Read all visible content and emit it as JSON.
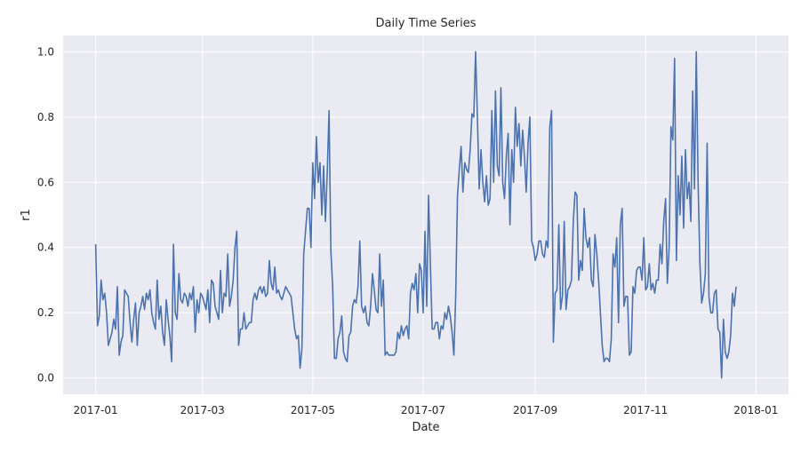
{
  "chart_data": {
    "type": "line",
    "title": "Daily Time Series",
    "xlabel": "Date",
    "ylabel": "r1",
    "x_tick_labels": [
      "2017-01",
      "2017-03",
      "2017-05",
      "2017-07",
      "2017-09",
      "2017-11",
      "2018-01"
    ],
    "x_tick_dates": [
      "2017-01-01",
      "2017-03-01",
      "2017-05-01",
      "2017-07-01",
      "2017-09-01",
      "2017-11-01",
      "2018-01-01"
    ],
    "xlim": [
      "2016-12-14",
      "2018-01-19"
    ],
    "y_ticks": [
      0.0,
      0.2,
      0.4,
      0.6,
      0.8,
      1.0
    ],
    "y_tick_labels": [
      "0.0",
      "0.2",
      "0.4",
      "0.6",
      "0.8",
      "1.0"
    ],
    "ylim": [
      -0.05,
      1.05
    ],
    "grid": true,
    "colors": {
      "background": "#EAEAF2",
      "grid": "#FFFFFF",
      "line": "#4C72B0",
      "text": "#262626"
    },
    "series": [
      {
        "start_date": "2017-01-01",
        "step_days": 1,
        "values": [
          0.41,
          0.16,
          0.19,
          0.3,
          0.24,
          0.26,
          0.2,
          0.1,
          0.12,
          0.14,
          0.18,
          0.15,
          0.28,
          0.07,
          0.11,
          0.13,
          0.27,
          0.26,
          0.25,
          0.17,
          0.11,
          0.18,
          0.23,
          0.1,
          0.2,
          0.22,
          0.25,
          0.21,
          0.26,
          0.24,
          0.27,
          0.2,
          0.17,
          0.15,
          0.3,
          0.18,
          0.22,
          0.14,
          0.1,
          0.24,
          0.18,
          0.13,
          0.05,
          0.41,
          0.2,
          0.18,
          0.32,
          0.24,
          0.23,
          0.26,
          0.25,
          0.22,
          0.26,
          0.24,
          0.28,
          0.14,
          0.24,
          0.2,
          0.26,
          0.25,
          0.23,
          0.21,
          0.27,
          0.17,
          0.3,
          0.29,
          0.22,
          0.2,
          0.18,
          0.33,
          0.2,
          0.26,
          0.25,
          0.38,
          0.22,
          0.25,
          0.3,
          0.4,
          0.45,
          0.1,
          0.15,
          0.15,
          0.2,
          0.15,
          0.16,
          0.17,
          0.17,
          0.24,
          0.26,
          0.24,
          0.27,
          0.28,
          0.26,
          0.28,
          0.25,
          0.26,
          0.36,
          0.29,
          0.27,
          0.34,
          0.26,
          0.27,
          0.25,
          0.24,
          0.26,
          0.28,
          0.27,
          0.26,
          0.25,
          0.2,
          0.15,
          0.12,
          0.13,
          0.03,
          0.09,
          0.38,
          0.45,
          0.52,
          0.52,
          0.4,
          0.66,
          0.55,
          0.74,
          0.6,
          0.66,
          0.5,
          0.65,
          0.48,
          0.63,
          0.82,
          0.39,
          0.28,
          0.06,
          0.06,
          0.12,
          0.14,
          0.19,
          0.08,
          0.06,
          0.05,
          0.13,
          0.14,
          0.22,
          0.24,
          0.23,
          0.28,
          0.42,
          0.22,
          0.2,
          0.22,
          0.17,
          0.16,
          0.22,
          0.32,
          0.27,
          0.21,
          0.2,
          0.38,
          0.22,
          0.3,
          0.07,
          0.08,
          0.07,
          0.07,
          0.07,
          0.07,
          0.08,
          0.14,
          0.12,
          0.16,
          0.13,
          0.15,
          0.16,
          0.12,
          0.26,
          0.29,
          0.27,
          0.32,
          0.2,
          0.35,
          0.33,
          0.2,
          0.45,
          0.22,
          0.56,
          0.35,
          0.15,
          0.15,
          0.17,
          0.17,
          0.12,
          0.16,
          0.15,
          0.2,
          0.18,
          0.22,
          0.19,
          0.14,
          0.07,
          0.25,
          0.56,
          0.64,
          0.71,
          0.57,
          0.66,
          0.64,
          0.63,
          0.7,
          0.81,
          0.8,
          1.0,
          0.8,
          0.58,
          0.7,
          0.6,
          0.54,
          0.62,
          0.53,
          0.55,
          0.82,
          0.6,
          0.88,
          0.65,
          0.62,
          0.89,
          0.6,
          0.55,
          0.68,
          0.75,
          0.47,
          0.7,
          0.6,
          0.83,
          0.71,
          0.78,
          0.65,
          0.76,
          0.68,
          0.57,
          0.72,
          0.8,
          0.42,
          0.4,
          0.36,
          0.38,
          0.42,
          0.42,
          0.38,
          0.37,
          0.42,
          0.4,
          0.77,
          0.82,
          0.11,
          0.26,
          0.27,
          0.47,
          0.21,
          0.25,
          0.48,
          0.21,
          0.27,
          0.28,
          0.3,
          0.48,
          0.57,
          0.56,
          0.3,
          0.36,
          0.33,
          0.52,
          0.43,
          0.4,
          0.43,
          0.3,
          0.28,
          0.44,
          0.38,
          0.3,
          0.2,
          0.1,
          0.05,
          0.06,
          0.06,
          0.05,
          0.12,
          0.38,
          0.34,
          0.43,
          0.17,
          0.47,
          0.52,
          0.22,
          0.25,
          0.25,
          0.07,
          0.08,
          0.28,
          0.26,
          0.33,
          0.34,
          0.34,
          0.3,
          0.43,
          0.27,
          0.28,
          0.35,
          0.27,
          0.29,
          0.26,
          0.3,
          0.3,
          0.41,
          0.35,
          0.48,
          0.55,
          0.29,
          0.4,
          0.77,
          0.73,
          0.98,
          0.36,
          0.62,
          0.5,
          0.68,
          0.46,
          0.7,
          0.55,
          0.6,
          0.48,
          0.88,
          0.58,
          1.0,
          0.6,
          0.35,
          0.23,
          0.26,
          0.32,
          0.72,
          0.25,
          0.2,
          0.2,
          0.26,
          0.27,
          0.15,
          0.14,
          0.0,
          0.18,
          0.08,
          0.06,
          0.08,
          0.13,
          0.26,
          0.22,
          0.28
        ]
      }
    ]
  }
}
